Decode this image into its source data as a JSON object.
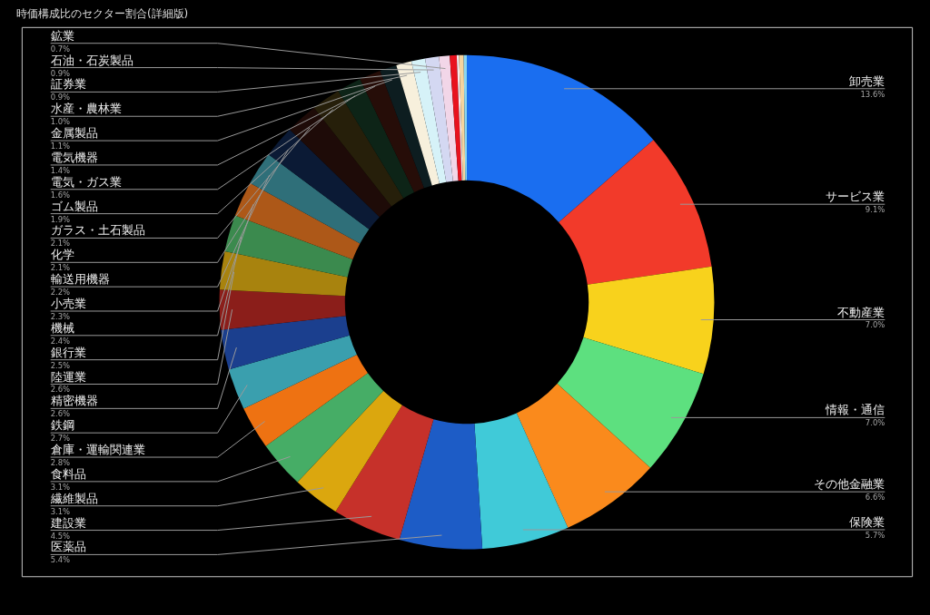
{
  "chart_data": {
    "type": "donut",
    "title": "時価構成比のセクター割合(詳細版)",
    "categories": [
      "卸売業",
      "サービス業",
      "不動産業",
      "情報・通信",
      "その他金融業",
      "保険業",
      "医薬品",
      "建設業",
      "繊維製品",
      "食料品",
      "倉庫・運輸関連業",
      "鉄鋼",
      "精密機器",
      "陸運業",
      "銀行業",
      "機械",
      "小売業",
      "輸送用機器",
      "化学",
      "ガラス・土石製品",
      "ゴム製品",
      "電気・ガス業",
      "電気機器",
      "金属製品",
      "水産・農林業",
      "証券業",
      "石油・石炭製品",
      "鉱業",
      null,
      null,
      null,
      null
    ],
    "values": [
      13.6,
      9.1,
      7.0,
      7.0,
      6.6,
      5.7,
      5.4,
      4.5,
      3.1,
      3.1,
      2.8,
      2.7,
      2.6,
      2.6,
      2.5,
      2.4,
      2.3,
      2.2,
      2.1,
      2.1,
      1.9,
      1.6,
      1.4,
      1.1,
      1.0,
      0.9,
      0.9,
      0.7,
      0.45,
      0.15,
      0.3,
      0.2
    ],
    "value_labels": [
      "13.6%",
      "9.1%",
      "7.0%",
      "7.0%",
      "6.6%",
      "5.7%",
      "5.4%",
      "4.5%",
      "3.1%",
      "3.1%",
      "2.8%",
      "2.7%",
      "2.6%",
      "2.6%",
      "2.5%",
      "2.4%",
      "2.3%",
      "2.2%",
      "2.1%",
      "2.1%",
      "1.9%",
      "1.6%",
      "1.4%",
      "1.1%",
      "1.0%",
      "0.9%",
      "0.9%",
      "0.7%",
      null,
      null,
      null,
      null
    ],
    "colors": [
      "#1a6ef0",
      "#f23a2a",
      "#f8d21c",
      "#5de07f",
      "#fa8a1c",
      "#40cad8",
      "#1d5cc6",
      "#c6312a",
      "#dba70e",
      "#46ad66",
      "#ee7212",
      "#3a9fae",
      "#1b3f8e",
      "#8b1e1a",
      "#a8830e",
      "#3b8a4e",
      "#ad5818",
      "#2f6f79",
      "#0b1a35",
      "#1e0b08",
      "#261f0a",
      "#0d2417",
      "#260d08",
      "#0d1d20",
      "#f7f0dc",
      "#d6f2f8",
      "#d4d8f2",
      "#f2d6e8",
      "#e8121e",
      "#f8e8ee",
      "#f5d49e",
      "#8ad6f0"
    ]
  }
}
